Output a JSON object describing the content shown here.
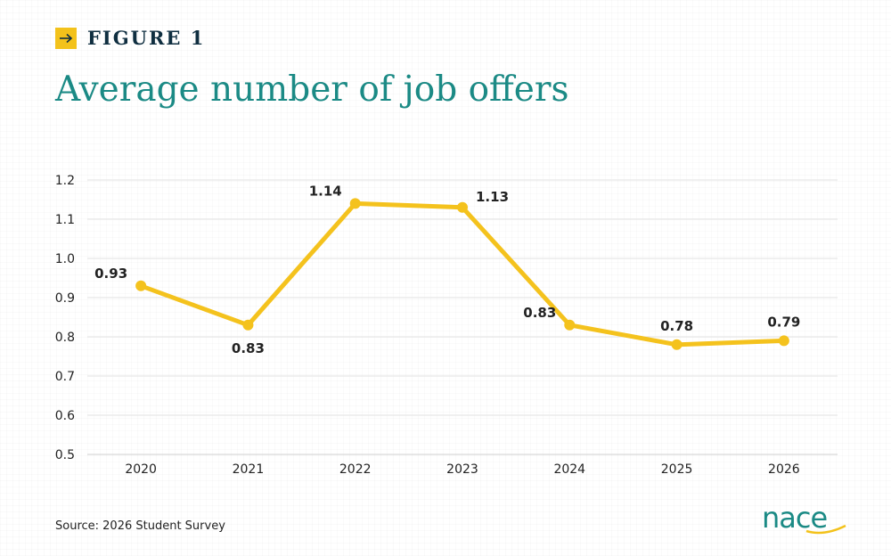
{
  "figure_label": "FIGURE 1",
  "title": "Average number of job offers",
  "source": "Source: 2026 Student Survey",
  "logo_text": "nace",
  "colors": {
    "line": "#f4c21d",
    "title": "#1b8a85",
    "label": "#0f2e40",
    "accent": "#f3c21b"
  },
  "chart_data": {
    "type": "line",
    "title": "Average number of job offers",
    "xlabel": "",
    "ylabel": "",
    "categories": [
      "2020",
      "2021",
      "2022",
      "2023",
      "2024",
      "2025",
      "2026"
    ],
    "series": [
      {
        "values": [
          0.93,
          0.83,
          1.14,
          1.13,
          0.83,
          0.78,
          0.79
        ]
      }
    ],
    "data_labels": [
      "0.93",
      "0.83",
      "1.14",
      "1.13",
      "0.83",
      "0.78",
      "0.79"
    ],
    "label_positions": [
      "left",
      "below",
      "left",
      "right",
      "left",
      "above",
      "above"
    ],
    "ylim": [
      0.5,
      1.2
    ],
    "yticks": [
      "0.5",
      "0.6",
      "0.7",
      "0.8",
      "0.9",
      "1.0",
      "1.1",
      "1.2"
    ],
    "grid": true,
    "legend": "none"
  }
}
